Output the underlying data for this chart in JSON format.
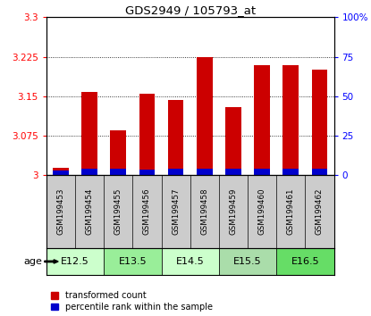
{
  "title": "GDS2949 / 105793_at",
  "samples": [
    "GSM199453",
    "GSM199454",
    "GSM199455",
    "GSM199456",
    "GSM199457",
    "GSM199458",
    "GSM199459",
    "GSM199460",
    "GSM199461",
    "GSM199462"
  ],
  "red_values": [
    3.015,
    3.158,
    3.085,
    3.155,
    3.143,
    3.225,
    3.13,
    3.21,
    3.21,
    3.2
  ],
  "blue_values": [
    3.01,
    3.013,
    3.012,
    3.011,
    3.013,
    3.013,
    3.012,
    3.012,
    3.012,
    3.012
  ],
  "base": 3.0,
  "ylim_left": [
    3.0,
    3.3
  ],
  "ylim_right": [
    0,
    100
  ],
  "yticks_left": [
    3.0,
    3.075,
    3.15,
    3.225,
    3.3
  ],
  "yticks_right": [
    0,
    25,
    50,
    75,
    100
  ],
  "ytick_labels_left": [
    "3",
    "3.075",
    "3.15",
    "3.225",
    "3.3"
  ],
  "ytick_labels_right": [
    "0",
    "25",
    "50",
    "75",
    "100%"
  ],
  "age_groups": [
    {
      "label": "E12.5",
      "start": 0,
      "end": 2,
      "color": "#ccffcc"
    },
    {
      "label": "E13.5",
      "start": 2,
      "end": 4,
      "color": "#99ee99"
    },
    {
      "label": "E14.5",
      "start": 4,
      "end": 6,
      "color": "#ccffcc"
    },
    {
      "label": "E15.5",
      "start": 6,
      "end": 8,
      "color": "#aaddaa"
    },
    {
      "label": "E16.5",
      "start": 8,
      "end": 10,
      "color": "#66dd66"
    }
  ],
  "bar_color_red": "#cc0000",
  "bar_color_blue": "#0000cc",
  "bar_width": 0.55,
  "legend_red": "transformed count",
  "legend_blue": "percentile rank within the sample",
  "age_label": "age",
  "sample_bg": "#cccccc"
}
